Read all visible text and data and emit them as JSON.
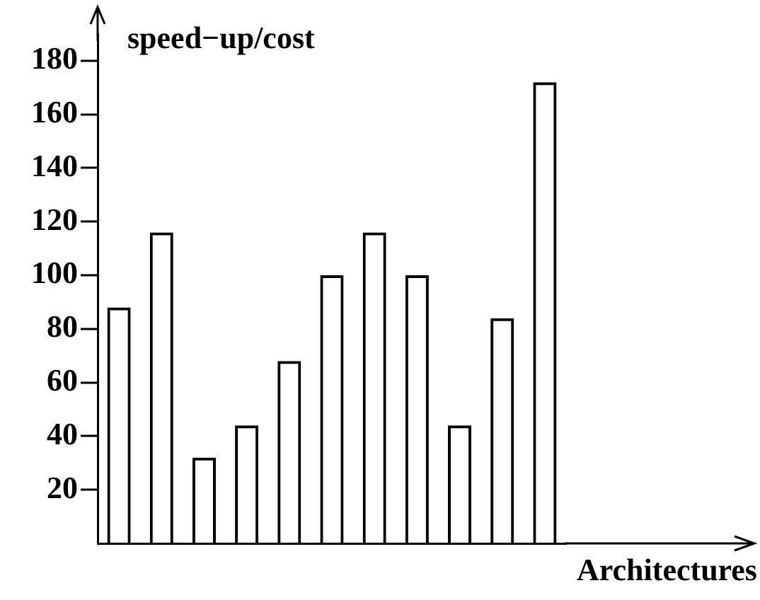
{
  "chart_data": {
    "type": "bar",
    "ylabel": "speed−up/cost",
    "xlabel": "Architectures",
    "categories": [
      null,
      null,
      null,
      null,
      null,
      null,
      null,
      null,
      null,
      null,
      null
    ],
    "values": [
      88,
      116,
      32,
      44,
      68,
      100,
      116,
      100,
      44,
      84,
      172
    ],
    "color": "#000000",
    "ylim": [
      0,
      190
    ],
    "yticks": [
      20,
      40,
      60,
      80,
      100,
      120,
      140,
      160,
      180
    ],
    "grid": false,
    "legend": false,
    "tick_labels": "y"
  }
}
